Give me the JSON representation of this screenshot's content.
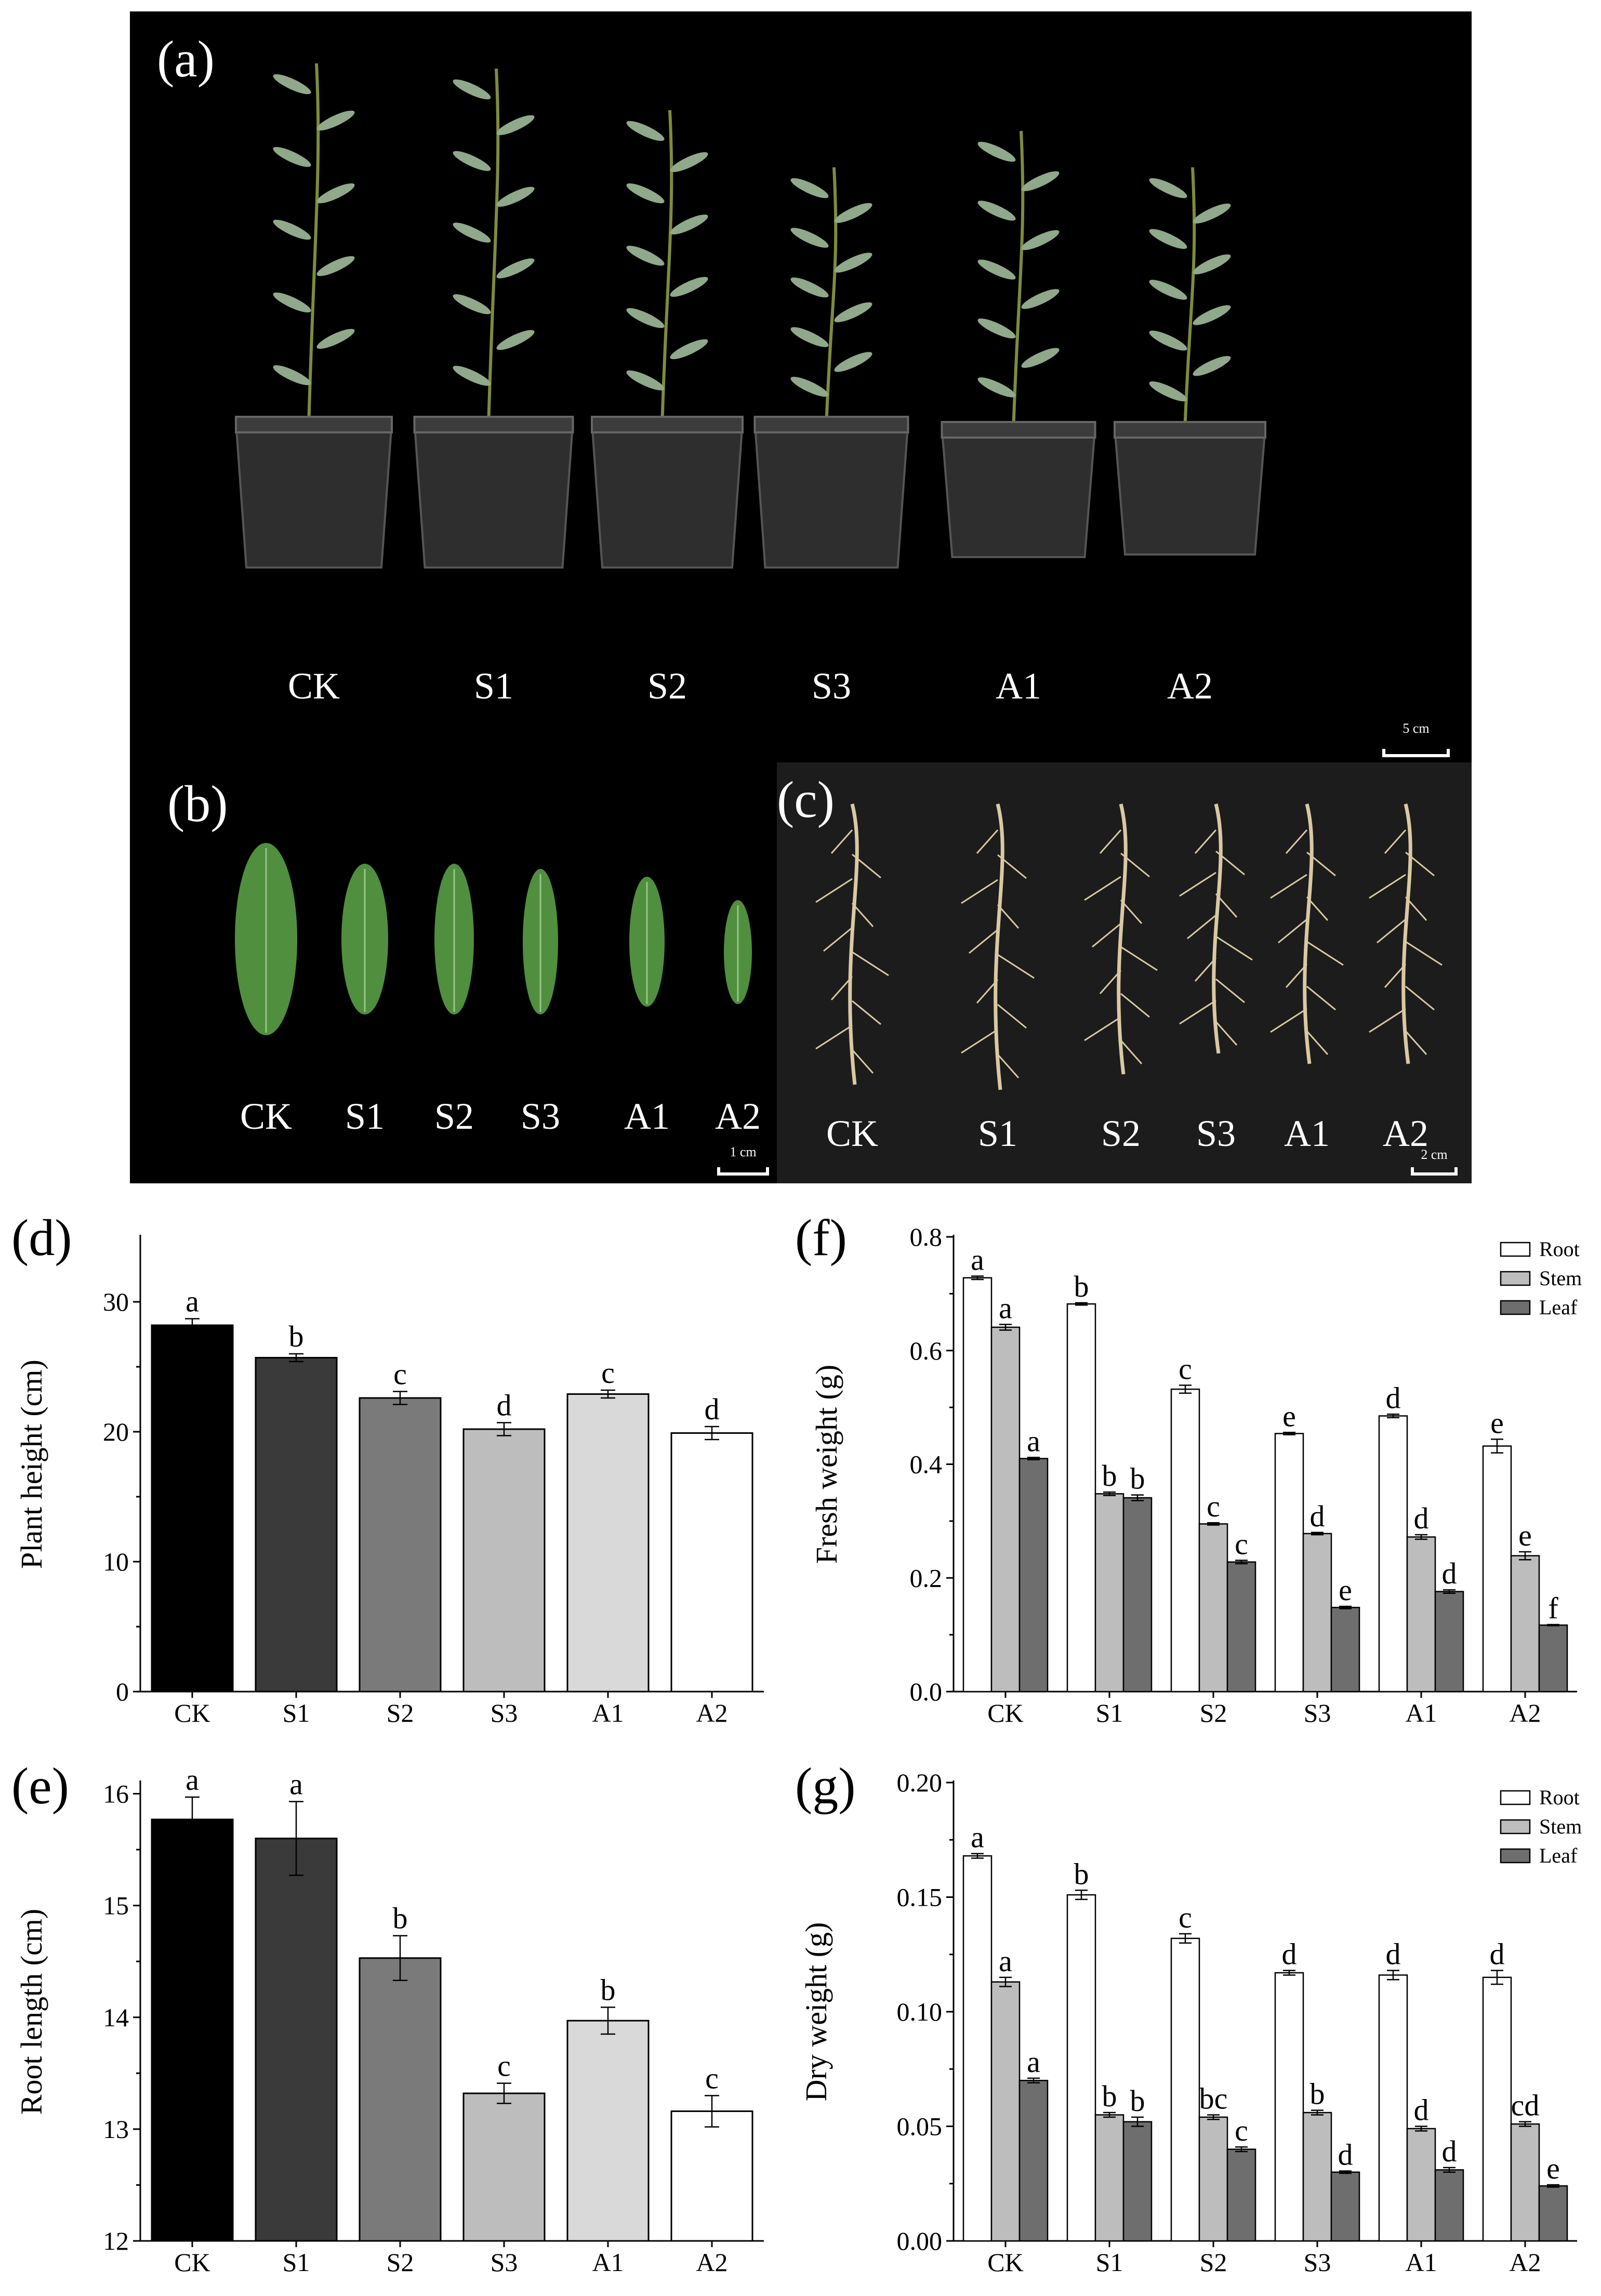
{
  "panels": {
    "a": {
      "label": "(a)",
      "groups": [
        "CK",
        "S1",
        "S2",
        "S3",
        "A1",
        "A2"
      ],
      "scale": "5 cm"
    },
    "b": {
      "label": "(b)",
      "groups": [
        "CK",
        "S1",
        "S2",
        "S3",
        "A1",
        "A2"
      ],
      "scale": "1 cm"
    },
    "c": {
      "label": "(c)",
      "groups": [
        "CK",
        "S1",
        "S2",
        "S3",
        "A1",
        "A2"
      ],
      "scale": "2 cm"
    }
  },
  "colors": {
    "black_bg": "#000000",
    "soil_bg": "#1c1c1c",
    "stem": "#7d8c3e",
    "leaf": "#8fa98a",
    "leaf_b": "#4f8f3e",
    "root": "#d9c9a3",
    "pot": "#2e2e2e",
    "CK": "#000000",
    "S1": "#3a3a3a",
    "S2": "#7a7a7a",
    "S3": "#bdbdbd",
    "A1": "#d9d9d9",
    "A2": "#ffffff",
    "Root": "#ffffff",
    "Stem": "#bdbdbd",
    "Leaf": "#6e6e6e"
  },
  "chart_data": [
    {
      "id": "d",
      "label": "(d)",
      "type": "bar",
      "categories": [
        "CK",
        "S1",
        "S2",
        "S3",
        "A1",
        "A2"
      ],
      "values": [
        28.2,
        25.7,
        22.6,
        20.2,
        22.9,
        19.9
      ],
      "errors": [
        0.5,
        0.3,
        0.5,
        0.5,
        0.3,
        0.5
      ],
      "letters": [
        "a",
        "b",
        "c",
        "d",
        "c",
        "d"
      ],
      "ylabel": "Plant height (cm)",
      "ylim": [
        0,
        35
      ],
      "yticks": [
        0,
        10,
        20,
        30
      ],
      "ytick_labels": [
        "0",
        "10",
        "20",
        "30"
      ]
    },
    {
      "id": "e",
      "label": "(e)",
      "type": "bar",
      "categories": [
        "CK",
        "S1",
        "S2",
        "S3",
        "A1",
        "A2"
      ],
      "values": [
        15.77,
        15.6,
        14.53,
        13.32,
        13.97,
        13.16
      ],
      "errors": [
        0.2,
        0.33,
        0.2,
        0.09,
        0.12,
        0.14
      ],
      "letters": [
        "a",
        "a",
        "b",
        "c",
        "b",
        "c"
      ],
      "ylabel": "Root length (cm)",
      "ylim": [
        12,
        16.1
      ],
      "yticks": [
        12,
        13,
        14,
        15,
        16
      ],
      "ytick_labels": [
        "12",
        "13",
        "14",
        "15",
        "16"
      ]
    },
    {
      "id": "f",
      "label": "(f)",
      "type": "bar",
      "categories": [
        "CK",
        "S1",
        "S2",
        "S3",
        "A1",
        "A2"
      ],
      "series": [
        {
          "name": "Root",
          "values": [
            0.728,
            0.682,
            0.532,
            0.454,
            0.485,
            0.432
          ],
          "errors": [
            0.003,
            0.002,
            0.007,
            0.002,
            0.003,
            0.012
          ],
          "letters": [
            "a",
            "b",
            "c",
            "e",
            "d",
            "e"
          ]
        },
        {
          "name": "Stem",
          "values": [
            0.641,
            0.348,
            0.295,
            0.278,
            0.272,
            0.239
          ],
          "errors": [
            0.005,
            0.003,
            0.002,
            0.002,
            0.004,
            0.007
          ],
          "letters": [
            "a",
            "b",
            "c",
            "d",
            "d",
            "e"
          ]
        },
        {
          "name": "Leaf",
          "values": [
            0.41,
            0.341,
            0.228,
            0.148,
            0.176,
            0.117
          ],
          "errors": [
            0.002,
            0.005,
            0.003,
            0.002,
            0.003,
            0.001
          ],
          "letters": [
            "a",
            "b",
            "c",
            "e",
            "d",
            "f"
          ]
        }
      ],
      "ylabel": "Fresh weight (g)",
      "ylim": [
        0,
        0.8
      ],
      "yticks": [
        0.0,
        0.2,
        0.4,
        0.6,
        0.8
      ],
      "ytick_labels": [
        "0.0",
        "0.2",
        "0.4",
        "0.6",
        "0.8"
      ],
      "legend": "top-right"
    },
    {
      "id": "g",
      "label": "(g)",
      "type": "bar",
      "categories": [
        "CK",
        "S1",
        "S2",
        "S3",
        "A1",
        "A2"
      ],
      "series": [
        {
          "name": "Root",
          "values": [
            0.168,
            0.151,
            0.132,
            0.117,
            0.116,
            0.115
          ],
          "errors": [
            0.001,
            0.002,
            0.002,
            0.001,
            0.002,
            0.003
          ],
          "letters": [
            "a",
            "b",
            "c",
            "d",
            "d",
            "d"
          ]
        },
        {
          "name": "Stem",
          "values": [
            0.113,
            0.055,
            0.054,
            0.056,
            0.049,
            0.051
          ],
          "errors": [
            0.002,
            0.001,
            0.001,
            0.001,
            0.001,
            0.001
          ],
          "letters": [
            "a",
            "b",
            "bc",
            "b",
            "d",
            "cd"
          ]
        },
        {
          "name": "Leaf",
          "values": [
            0.07,
            0.052,
            0.04,
            0.03,
            0.031,
            0.024
          ],
          "errors": [
            0.001,
            0.002,
            0.001,
            0.0005,
            0.001,
            0.0005
          ],
          "letters": [
            "a",
            "b",
            "c",
            "d",
            "d",
            "e"
          ]
        }
      ],
      "ylabel": "Dry weight (g)",
      "ylim": [
        0,
        0.2
      ],
      "yticks": [
        0.0,
        0.05,
        0.1,
        0.15,
        0.2
      ],
      "ytick_labels": [
        "0.00",
        "0.05",
        "0.10",
        "0.15",
        "0.20"
      ],
      "legend": "top-right"
    }
  ]
}
